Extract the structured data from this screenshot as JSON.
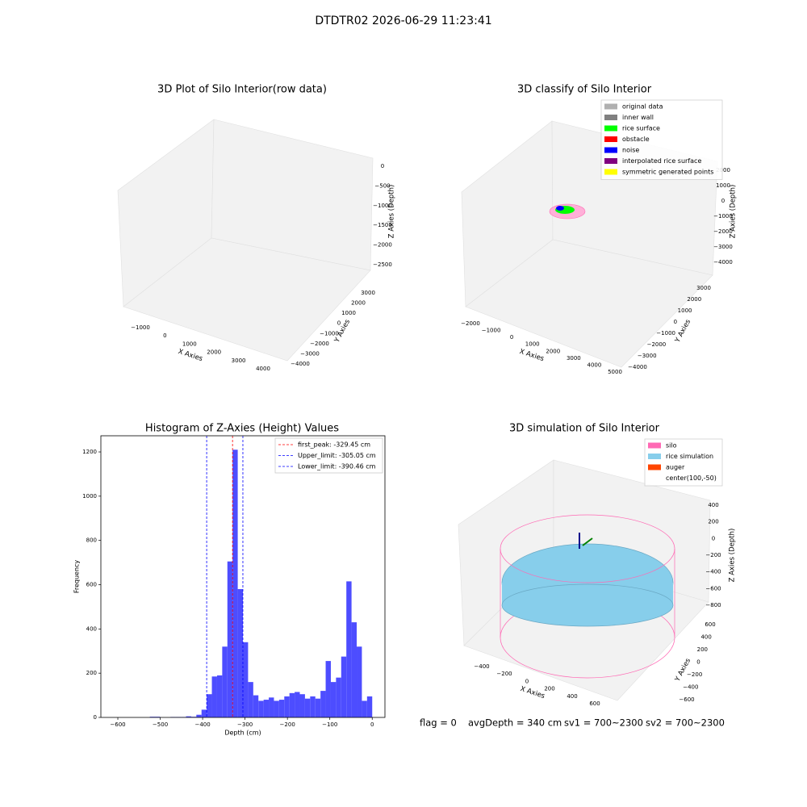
{
  "title": "DTDTR02 2026-06-29 11:23:41",
  "chart_data": [
    {
      "type": "scatter3d",
      "title": "3D Plot of Silo Interior(row data)",
      "xlabel": "X Axies",
      "ylabel": "Y Axies",
      "zlabel": "Z Axies (Depth)",
      "xlim": [
        -1000,
        4000
      ],
      "ylim": [
        -4000,
        3000
      ],
      "zlim": [
        -2500,
        0
      ],
      "xticks": [
        {
          "value": -1000,
          "label": "−1000"
        },
        0,
        1000,
        2000,
        3000,
        4000
      ],
      "yticks": [
        {
          "value": -4000,
          "label": "−4000"
        },
        {
          "value": -3000,
          "label": "−3000"
        },
        {
          "value": -2000,
          "label": "−2000"
        },
        {
          "value": -1000,
          "label": "−1000"
        },
        0,
        1000,
        2000,
        3000
      ],
      "zticks": [
        0,
        {
          "value": -500,
          "label": "−500"
        },
        {
          "value": -1000,
          "label": "−1000"
        },
        {
          "value": -1500,
          "label": "−1500"
        },
        {
          "value": -2000,
          "label": "−2000"
        },
        {
          "value": -2500,
          "label": "−2500"
        }
      ]
    },
    {
      "type": "scatter3d",
      "title": "3D classify of Silo Interior",
      "xlabel": "X Axies",
      "ylabel": "Y Axies",
      "zlabel": "Z Axies (Depth)",
      "xlim": [
        -2000,
        5000
      ],
      "ylim": [
        -4000,
        3000
      ],
      "zlim": [
        -4000,
        2000
      ],
      "xticks": [
        {
          "value": -2000,
          "label": "−2000"
        },
        {
          "value": -1000,
          "label": "−1000"
        },
        0,
        1000,
        2000,
        3000,
        4000,
        5000
      ],
      "yticks": [
        {
          "value": -4000,
          "label": "−4000"
        },
        {
          "value": -3000,
          "label": "−3000"
        },
        {
          "value": -2000,
          "label": "−2000"
        },
        {
          "value": -1000,
          "label": "−1000"
        },
        0,
        1000,
        2000,
        3000
      ],
      "zticks": [
        2000,
        1000,
        0,
        {
          "value": -1000,
          "label": "−1000"
        },
        {
          "value": -2000,
          "label": "−2000"
        },
        {
          "value": -3000,
          "label": "−3000"
        },
        {
          "value": -4000,
          "label": "−4000"
        }
      ],
      "legend": [
        {
          "name": "original data",
          "color": "#b0b0b0"
        },
        {
          "name": "inner wall",
          "color": "#808080"
        },
        {
          "name": "rice surface",
          "color": "#00ff00"
        },
        {
          "name": "obstacle",
          "color": "#ff0000"
        },
        {
          "name": "noise",
          "color": "#0000ff"
        },
        {
          "name": "interpolated rice surface",
          "color": "#800080"
        },
        {
          "name": "symmetric generated points",
          "color": "#ffff00"
        }
      ]
    },
    {
      "type": "histogram",
      "title": "Histogram of Z-Axies (Height) Values",
      "xlabel": "Depth (cm)",
      "ylabel": "Frequency",
      "color": "#4d4dff",
      "bins": [
        -524.6,
        -512.4,
        -500.2,
        -488.0,
        -475.8,
        -463.6,
        -451.4,
        -439.2,
        -427.0,
        -414.8,
        -402.6,
        -390.4,
        -378.2,
        -366.0,
        -353.8,
        -341.6,
        -329.4,
        -317.2,
        -305.0,
        -292.8,
        -280.6,
        -268.4,
        -256.2,
        -244.0,
        -231.8,
        -219.6,
        -207.4,
        -195.2,
        -183.0,
        -170.8,
        -158.6,
        -146.4,
        -134.2,
        -122.0,
        -109.8,
        -97.6,
        -85.4,
        -73.2,
        -61.0,
        -48.8,
        -36.6,
        -24.4,
        -12.2,
        0
      ],
      "values": [
        3,
        3,
        0,
        0,
        2,
        2,
        2,
        5,
        3,
        12,
        35,
        105,
        185,
        190,
        320,
        705,
        1210,
        580,
        340,
        160,
        100,
        75,
        80,
        90,
        75,
        80,
        95,
        110,
        115,
        105,
        85,
        95,
        85,
        120,
        255,
        160,
        180,
        275,
        615,
        430,
        320,
        75,
        95
      ],
      "xlim": [
        -640,
        30
      ],
      "ylim": [
        0,
        1273
      ],
      "xticks": [
        {
          "value": -600,
          "label": "−600"
        },
        {
          "value": -500,
          "label": "−500"
        },
        {
          "value": -400,
          "label": "−400"
        },
        {
          "value": -300,
          "label": "−300"
        },
        {
          "value": -200,
          "label": "−200"
        },
        {
          "value": -100,
          "label": "−100"
        },
        0
      ],
      "yticks": [
        0,
        200,
        400,
        600,
        800,
        1000,
        1200
      ],
      "lines": [
        {
          "label": "first_peak: -329.45 cm",
          "value": -329.45,
          "color": "#ff0000"
        },
        {
          "label": "Upper_limit: -305.05 cm",
          "value": -305.05,
          "color": "#0000ff"
        },
        {
          "label": "Lower_limit: -390.46 cm",
          "value": -390.46,
          "color": "#0000ff"
        }
      ]
    },
    {
      "type": "surface3d",
      "title": "3D simulation of Silo Interior",
      "xlabel": "X Axies",
      "ylabel": "Y Axies",
      "zlabel": "Z Axies (Depth)",
      "xlim": [
        -400,
        600
      ],
      "ylim": [
        -600,
        600
      ],
      "zlim": [
        -800,
        400
      ],
      "xticks": [
        {
          "value": -400,
          "label": "−400"
        },
        {
          "value": -200,
          "label": "−200"
        },
        0,
        200,
        400,
        600
      ],
      "yticks": [
        {
          "value": -600,
          "label": "−600"
        },
        {
          "value": -400,
          "label": "−400"
        },
        {
          "value": -200,
          "label": "−200"
        },
        0,
        200,
        400,
        600
      ],
      "zticks": [
        400,
        200,
        0,
        {
          "value": -200,
          "label": "−200"
        },
        {
          "value": -400,
          "label": "−400"
        },
        {
          "value": -600,
          "label": "−600"
        },
        {
          "value": -800,
          "label": "−800"
        }
      ],
      "legend": [
        {
          "name": "silo",
          "color": "#ff69b4"
        },
        {
          "name": "rice simulation",
          "color": "#87ceeb"
        },
        {
          "name": "auger",
          "color": "#ff4500"
        },
        {
          "name": "center(100,-50)"
        }
      ]
    }
  ],
  "footer": [
    "flag = 0",
    "avgDepth = 340 cm",
    "sv1 = 700~2300",
    "sv2 = 700~2300"
  ]
}
